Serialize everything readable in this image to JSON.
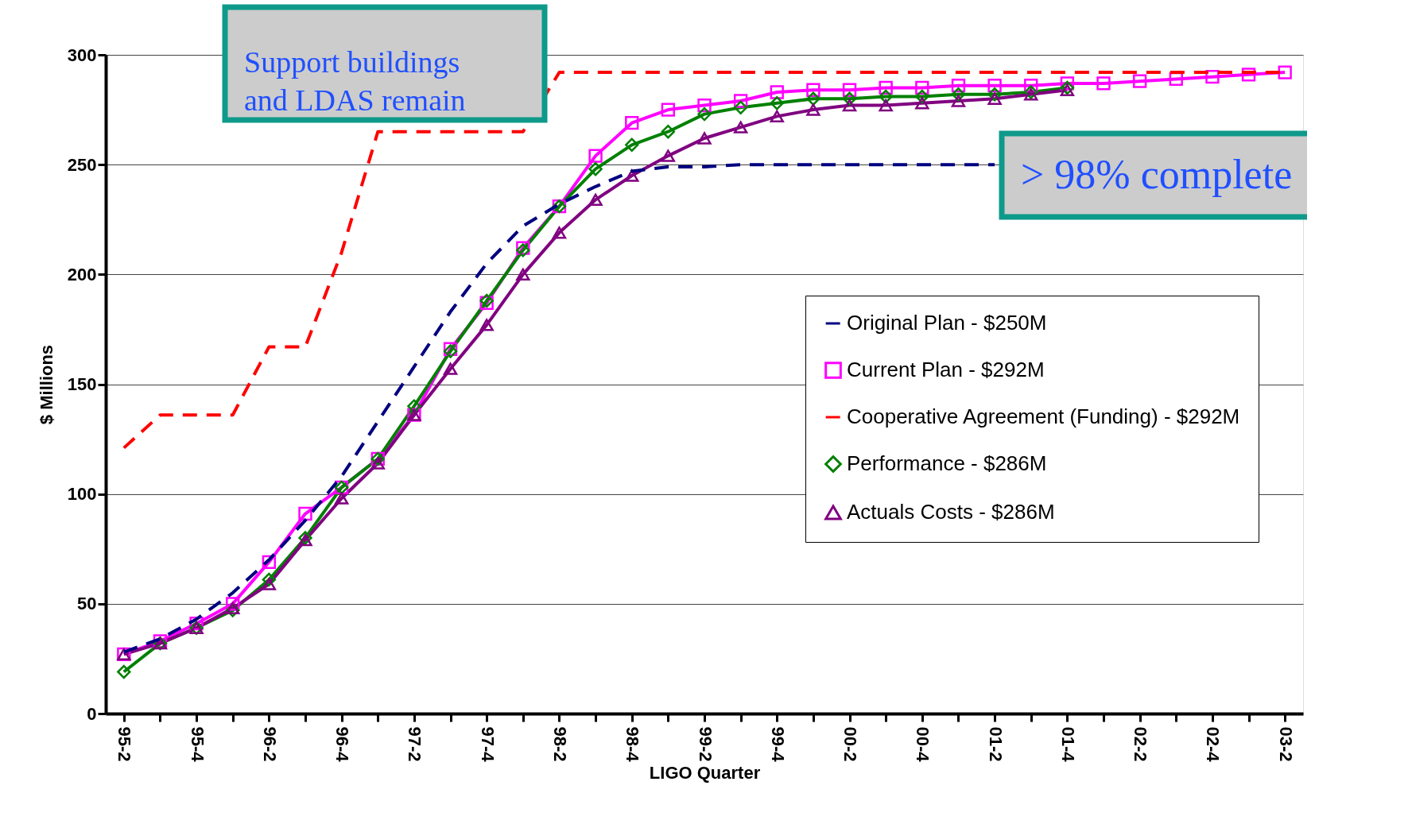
{
  "chart_data": {
    "type": "line",
    "xlabel": "LIGO Quarter",
    "ylabel": "$ Millions",
    "categories": [
      "95-2",
      null,
      "95-4",
      null,
      "96-2",
      null,
      "96-4",
      null,
      "97-2",
      null,
      "97-4",
      null,
      "98-2",
      null,
      "98-4",
      null,
      "99-2",
      null,
      "99-4",
      null,
      "00-2",
      null,
      "00-4",
      null,
      "01-2",
      null,
      "01-4",
      null,
      "02-2",
      null,
      "02-4",
      null,
      "03-2"
    ],
    "ylim": [
      0,
      300
    ],
    "yticks": [
      0,
      50,
      100,
      150,
      200,
      250,
      300
    ],
    "grid": "y",
    "legend": "right",
    "series": [
      {
        "name": "Original Plan - $250M",
        "color": "#000080",
        "line_style": "dashed",
        "marker": "none",
        "values": [
          28,
          34,
          43,
          55,
          70,
          88,
          108,
          133,
          158,
          183,
          205,
          222,
          232,
          240,
          247,
          249,
          249,
          250,
          250,
          250,
          250,
          250,
          250,
          250,
          250,
          null,
          null,
          null,
          null,
          null,
          null,
          null,
          null
        ]
      },
      {
        "name": "Current Plan - $292M",
        "color": "#ff00ff",
        "line_style": "solid",
        "marker": "square",
        "values": [
          27,
          33,
          41,
          50,
          69,
          91,
          103,
          116,
          136,
          166,
          187,
          212,
          231,
          254,
          269,
          275,
          277,
          279,
          283,
          284,
          284,
          285,
          285,
          286,
          286,
          286,
          287,
          287,
          288,
          289,
          290,
          291,
          292
        ]
      },
      {
        "name": "Cooperative Agreement (Funding) - $292M",
        "color": "#ff0000",
        "line_style": "dashed",
        "marker": "none",
        "values": [
          121,
          136,
          136,
          136,
          167,
          167,
          210,
          265,
          265,
          265,
          265,
          265,
          292,
          292,
          292,
          292,
          292,
          292,
          292,
          292,
          292,
          292,
          292,
          292,
          292,
          292,
          292,
          292,
          292,
          292,
          292,
          292,
          292
        ]
      },
      {
        "name": "Performance - $286M",
        "color": "#008000",
        "line_style": "solid",
        "marker": "diamond",
        "values": [
          19,
          32,
          39,
          47,
          61,
          80,
          103,
          116,
          140,
          165,
          188,
          211,
          231,
          248,
          259,
          265,
          273,
          276,
          278,
          280,
          280,
          281,
          281,
          282,
          282,
          283,
          285,
          null,
          null,
          null,
          null,
          null,
          null
        ]
      },
      {
        "name": "Actuals Costs - $286M",
        "color": "#800080",
        "line_style": "solid",
        "marker": "triangle",
        "values": [
          27,
          32,
          39,
          48,
          59,
          79,
          98,
          114,
          136,
          157,
          177,
          200,
          219,
          234,
          245,
          254,
          262,
          267,
          272,
          275,
          277,
          277,
          278,
          279,
          280,
          282,
          284,
          null,
          null,
          null,
          null,
          null,
          null
        ]
      }
    ],
    "annotations": [
      "Support buildings\nand LDAS remain",
      "> 98% complete"
    ]
  }
}
